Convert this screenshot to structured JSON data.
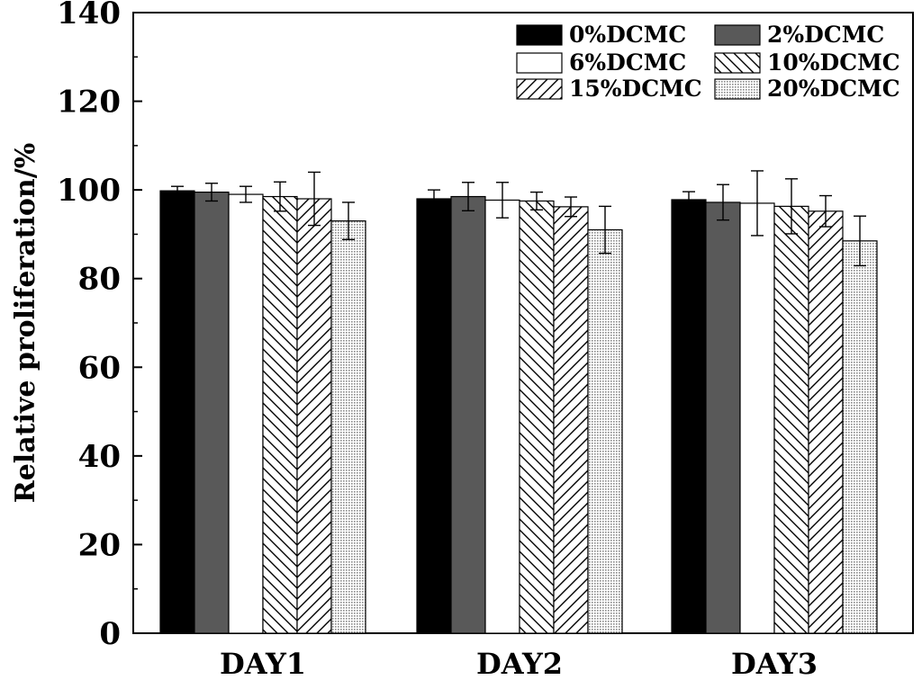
{
  "chart_data": {
    "type": "bar",
    "title": "",
    "xlabel": "",
    "ylabel": "Relative proliferation/%",
    "ylim": [
      0,
      140
    ],
    "yticks": [
      "0",
      "20",
      "40",
      "60",
      "80",
      "100",
      "120",
      "140"
    ],
    "categories": [
      "DAY1",
      "DAY2",
      "DAY3"
    ],
    "legend_position": "top-right",
    "grid": false,
    "series": [
      {
        "name": "0%DCMC",
        "fill": "black",
        "values": [
          99.8,
          98.0,
          97.8
        ],
        "errors": [
          1.0,
          2.0,
          1.8
        ]
      },
      {
        "name": "2%DCMC",
        "fill": "dark-gray",
        "values": [
          99.5,
          98.5,
          97.2
        ],
        "errors": [
          2.0,
          3.2,
          4.0
        ]
      },
      {
        "name": "6%DCMC",
        "fill": "white",
        "values": [
          99.0,
          97.7,
          97.0
        ],
        "errors": [
          1.8,
          4.0,
          7.3
        ]
      },
      {
        "name": "10%DCMC",
        "fill": "back-hatch",
        "values": [
          98.5,
          97.5,
          96.3
        ],
        "errors": [
          3.3,
          2.0,
          6.2
        ]
      },
      {
        "name": "15%DCMC",
        "fill": "fwd-hatch",
        "values": [
          98.0,
          96.2,
          95.2
        ],
        "errors": [
          6.0,
          2.2,
          3.5
        ]
      },
      {
        "name": "20%DCMC",
        "fill": "dots",
        "values": [
          93.0,
          91.0,
          88.5
        ],
        "errors": [
          4.2,
          5.3,
          5.6
        ]
      }
    ]
  },
  "colors": {
    "black": "#000000",
    "dark_gray": "#595959",
    "white": "#ffffff",
    "dot": "#8a8a8a"
  }
}
